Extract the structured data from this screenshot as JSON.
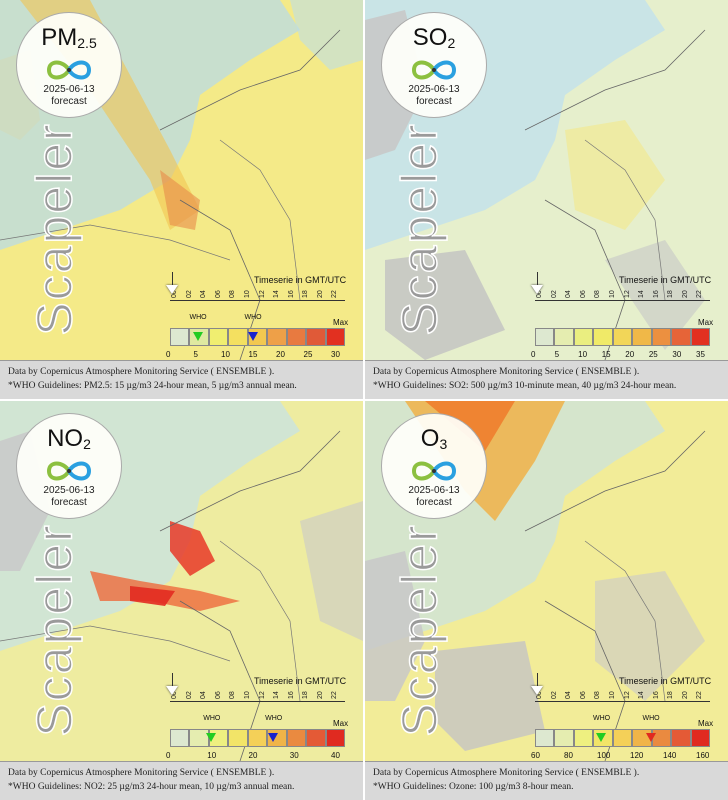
{
  "panels": [
    {
      "id": "pm25",
      "pollutant": "PM",
      "pollutant_sub": "2.5",
      "date": "2025-06-13",
      "status": "forecast",
      "brand": "Scapeler",
      "timeserie_label": "Timeserie in GMT/UTC",
      "hours": [
        "00",
        "02",
        "04",
        "06",
        "08",
        "10",
        "12",
        "14",
        "16",
        "18",
        "20",
        "22"
      ],
      "who_label": "WHO",
      "max_label": "Max",
      "scale": [
        "0",
        "5",
        "10",
        "15",
        "20",
        "25",
        "30"
      ],
      "scale_colors": [
        "#dde8d0",
        "#dfe9a0",
        "#f0ee70",
        "#f4e060",
        "#f2c850",
        "#eea048",
        "#e87a40",
        "#e05a38",
        "#e23020"
      ],
      "who_markers": [
        {
          "value": 5,
          "color": "#22cc22"
        },
        {
          "value": 15,
          "color": "#1a22cc"
        }
      ],
      "footer_line1": "Data by Copernicus Atmosphere Monitoring Service ( ENSEMBLE ).",
      "footer_line2": "*WHO Guidelines: PM2.5: 15 µg/m3 24-hour mean, 5 µg/m3 annual mean.",
      "map_bg": "#f4ea88"
    },
    {
      "id": "so2",
      "pollutant": "SO",
      "pollutant_sub": "2",
      "date": "2025-06-13",
      "status": "forecast",
      "brand": "Scapeler",
      "timeserie_label": "Timeserie in GMT/UTC",
      "hours": [
        "00",
        "02",
        "04",
        "06",
        "08",
        "10",
        "12",
        "14",
        "16",
        "18",
        "20",
        "22"
      ],
      "who_label": "",
      "max_label": "Max",
      "scale": [
        "0",
        "5",
        "10",
        "15",
        "20",
        "25",
        "30",
        "35"
      ],
      "scale_colors": [
        "#dde8d0",
        "#e5edb0",
        "#eaee80",
        "#f0ea68",
        "#f2d658",
        "#f0b848",
        "#ec9040",
        "#e66438",
        "#e23020"
      ],
      "who_markers": [],
      "footer_line1": "Data by Copernicus Atmosphere Monitoring Service ( ENSEMBLE ).",
      "footer_line2": "*WHO Guidelines: SO2: 500 µg/m3 10-minute mean, 40 µg/m3 24-hour mean.",
      "map_bg": "#e6efcc"
    },
    {
      "id": "no2",
      "pollutant": "NO",
      "pollutant_sub": "2",
      "date": "2025-06-13",
      "status": "forecast",
      "brand": "Scapeler",
      "timeserie_label": "Timeserie in GMT/UTC",
      "hours": [
        "00",
        "02",
        "04",
        "06",
        "08",
        "10",
        "12",
        "14",
        "16",
        "18",
        "20",
        "22"
      ],
      "who_label": "WHO",
      "max_label": "Max",
      "scale": [
        "0",
        "10",
        "20",
        "30",
        "40"
      ],
      "scale_colors": [
        "#dde8d0",
        "#e5edb0",
        "#eef080",
        "#f2e468",
        "#f4d058",
        "#f0b448",
        "#ea8a40",
        "#e45a36",
        "#e02a20"
      ],
      "who_markers": [
        {
          "value": 10,
          "color": "#22cc22"
        },
        {
          "value": 25,
          "color": "#1a22cc"
        }
      ],
      "footer_line1": "Data by Copernicus Atmosphere Monitoring Service ( ENSEMBLE ).",
      "footer_line2": "*WHO Guidelines: NO2: 25 µg/m3 24-hour mean, 10 µg/m3 annual mean.",
      "map_bg": "#eeeca0"
    },
    {
      "id": "o3",
      "pollutant": "O",
      "pollutant_sub": "3",
      "date": "2025-06-13",
      "status": "forecast",
      "brand": "Scapeler",
      "timeserie_label": "Timeserie in GMT/UTC",
      "hours": [
        "00",
        "02",
        "04",
        "06",
        "08",
        "10",
        "12",
        "14",
        "16",
        "18",
        "20",
        "22"
      ],
      "who_label": "WHO",
      "max_label": "Max",
      "scale": [
        "60",
        "80",
        "100",
        "120",
        "140",
        "160"
      ],
      "scale_colors": [
        "#dde8d0",
        "#e5edb0",
        "#eef080",
        "#f2e468",
        "#f4d058",
        "#f0b448",
        "#ea8a40",
        "#e45a36",
        "#e02a20"
      ],
      "who_markers": [
        {
          "value": 100,
          "color": "#22cc22"
        },
        {
          "value": 130,
          "color": "#e02a20"
        }
      ],
      "footer_line1": "Data by Copernicus Atmosphere Monitoring Service ( ENSEMBLE ).",
      "footer_line2": "*WHO Guidelines: Ozone: 100 µg/m3 8-hour mean.",
      "map_bg": "#f2ec98"
    }
  ]
}
